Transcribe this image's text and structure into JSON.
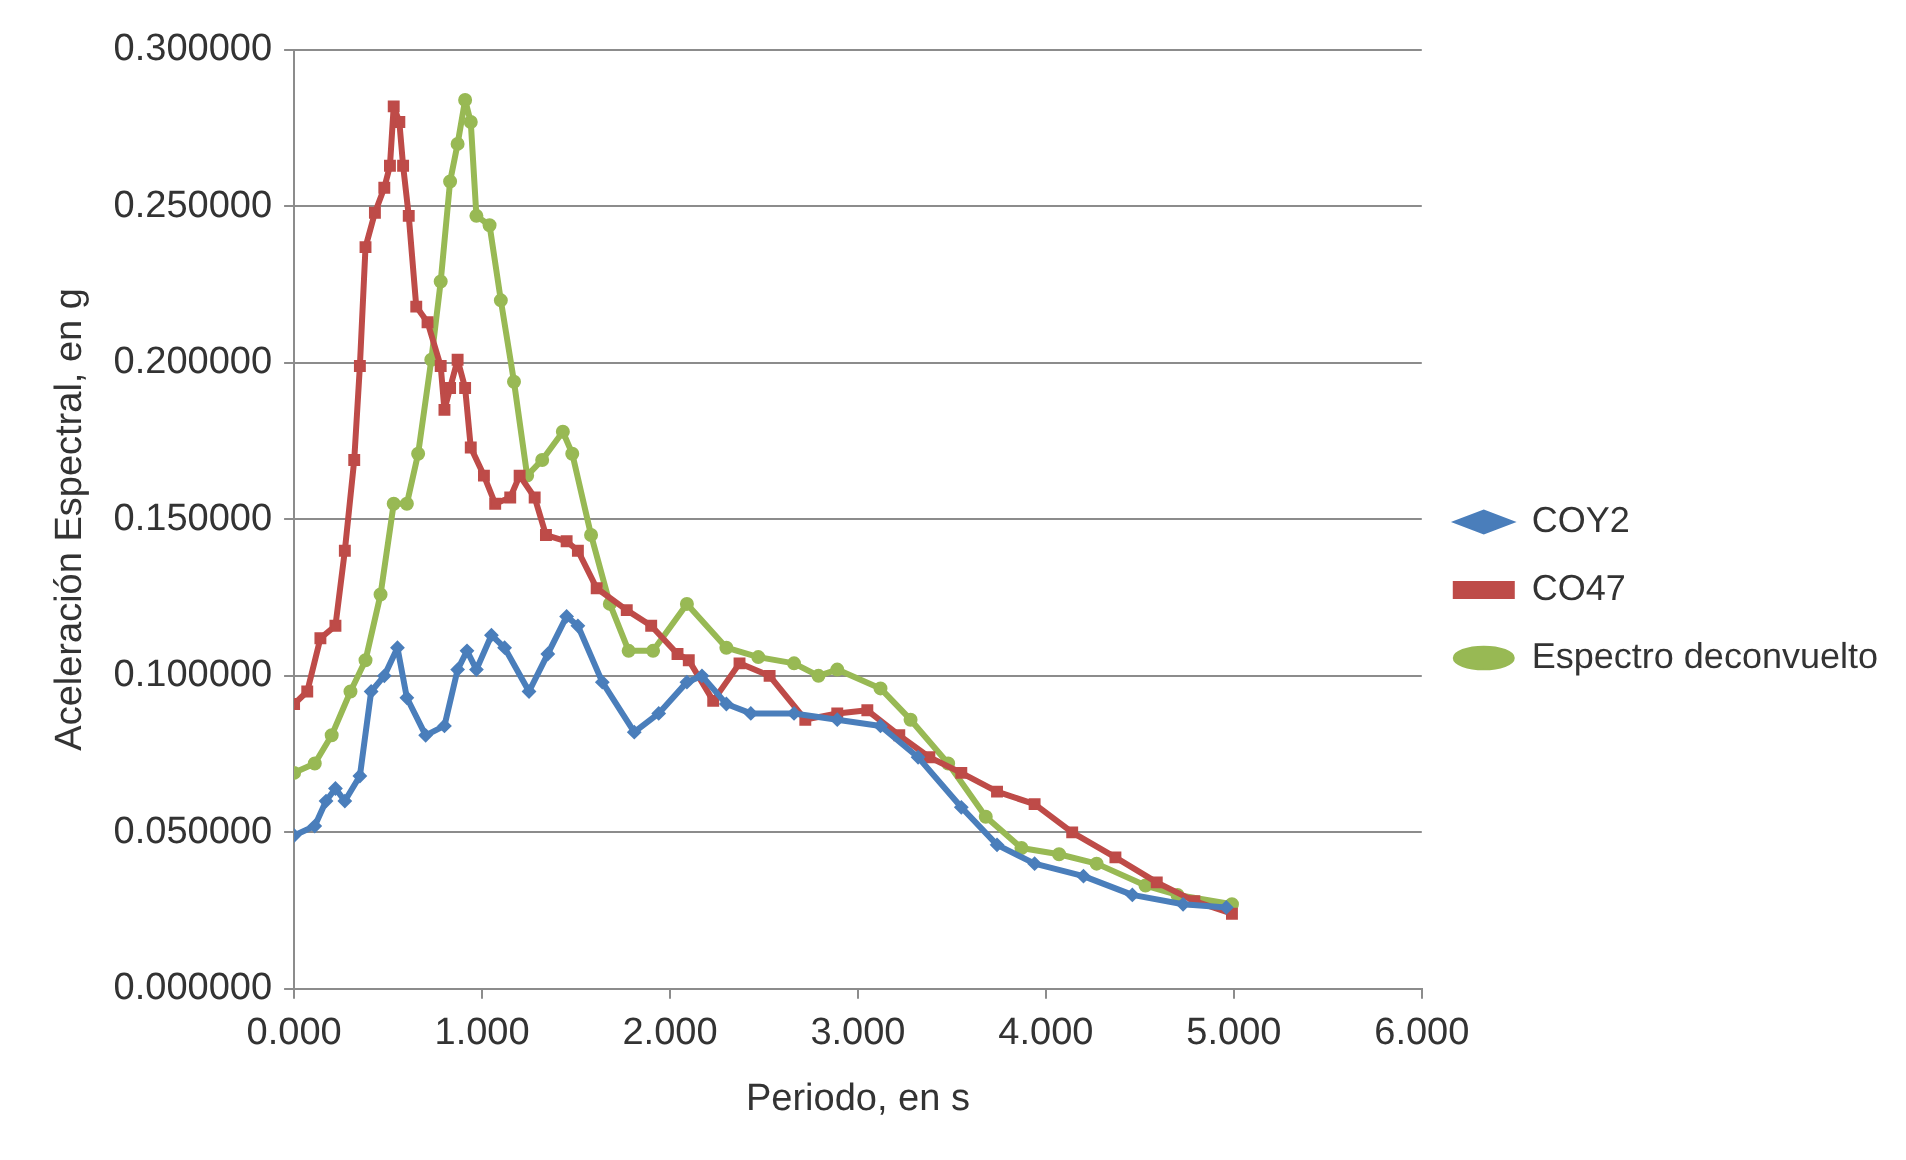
{
  "chart_data": {
    "type": "line",
    "xlabel": "Periodo, en s",
    "ylabel": "Aceleración Espectral, en g",
    "xlim": [
      0,
      6
    ],
    "xticks": [
      {
        "value": 0,
        "label": "0.000"
      },
      {
        "value": 1,
        "label": "1.000"
      },
      {
        "value": 2,
        "label": "2.000"
      },
      {
        "value": 3,
        "label": "3.000"
      },
      {
        "value": 4,
        "label": "4.000"
      },
      {
        "value": 5,
        "label": "5.000"
      },
      {
        "value": 6,
        "label": "6.000"
      }
    ],
    "ylim": [
      0,
      0.3
    ],
    "yticks": [
      {
        "value": 0,
        "label": "0.000000"
      },
      {
        "value": 0.05,
        "label": "0.050000"
      },
      {
        "value": 0.1,
        "label": "0.100000"
      },
      {
        "value": 0.15,
        "label": "0.150000"
      },
      {
        "value": 0.2,
        "label": "0.200000"
      },
      {
        "value": 0.25,
        "label": "0.250000"
      },
      {
        "value": 0.3,
        "label": "0.300000"
      }
    ],
    "grid": "y",
    "legend": "right",
    "series": [
      {
        "name": "COY2",
        "color": "#4a7ebb",
        "marker": "diamond",
        "x": [
          0,
          0.11,
          0.17,
          0.22,
          0.27,
          0.35,
          0.41,
          0.48,
          0.55,
          0.6,
          0.7,
          0.8,
          0.87,
          0.92,
          0.97,
          1.05,
          1.12,
          1.25,
          1.35,
          1.45,
          1.51,
          1.64,
          1.81,
          1.94,
          2.09,
          2.17,
          2.3,
          2.43,
          2.66,
          2.89,
          3.12,
          3.32,
          3.55,
          3.74,
          3.94,
          4.2,
          4.46,
          4.73,
          4.96
        ],
        "values": [
          0.049,
          0.052,
          0.06,
          0.064,
          0.06,
          0.068,
          0.095,
          0.1,
          0.109,
          0.093,
          0.081,
          0.084,
          0.102,
          0.108,
          0.102,
          0.113,
          0.109,
          0.095,
          0.107,
          0.119,
          0.116,
          0.098,
          0.082,
          0.088,
          0.098,
          0.1,
          0.091,
          0.088,
          0.088,
          0.086,
          0.084,
          0.074,
          0.058,
          0.046,
          0.04,
          0.036,
          0.03,
          0.027,
          0.026
        ]
      },
      {
        "name": "CO47",
        "color": "#be4b48",
        "marker": "square",
        "x": [
          0,
          0.07,
          0.14,
          0.22,
          0.27,
          0.32,
          0.35,
          0.38,
          0.43,
          0.48,
          0.51,
          0.53,
          0.56,
          0.58,
          0.61,
          0.65,
          0.71,
          0.78,
          0.8,
          0.83,
          0.87,
          0.91,
          0.94,
          1.01,
          1.07,
          1.15,
          1.2,
          1.28,
          1.34,
          1.45,
          1.51,
          1.61,
          1.77,
          1.9,
          2.04,
          2.1,
          2.23,
          2.37,
          2.53,
          2.72,
          2.89,
          3.05,
          3.22,
          3.38,
          3.55,
          3.74,
          3.94,
          4.14,
          4.37,
          4.59,
          4.79,
          4.99
        ],
        "values": [
          0.091,
          0.095,
          0.112,
          0.116,
          0.14,
          0.169,
          0.199,
          0.237,
          0.248,
          0.256,
          0.263,
          0.282,
          0.277,
          0.263,
          0.247,
          0.218,
          0.213,
          0.199,
          0.185,
          0.192,
          0.201,
          0.192,
          0.173,
          0.164,
          0.155,
          0.157,
          0.164,
          0.157,
          0.145,
          0.143,
          0.14,
          0.128,
          0.121,
          0.116,
          0.107,
          0.105,
          0.092,
          0.104,
          0.1,
          0.086,
          0.088,
          0.089,
          0.081,
          0.074,
          0.069,
          0.063,
          0.059,
          0.05,
          0.042,
          0.034,
          0.028,
          0.024
        ]
      },
      {
        "name": "Espectro deconvuelto",
        "color": "#98b954",
        "marker": "circle",
        "x": [
          0,
          0.11,
          0.2,
          0.3,
          0.38,
          0.46,
          0.53,
          0.6,
          0.66,
          0.73,
          0.78,
          0.83,
          0.87,
          0.91,
          0.94,
          0.97,
          1.04,
          1.1,
          1.17,
          1.24,
          1.32,
          1.43,
          1.48,
          1.58,
          1.68,
          1.78,
          1.91,
          2.09,
          2.3,
          2.47,
          2.66,
          2.79,
          2.89,
          3.12,
          3.28,
          3.48,
          3.68,
          3.87,
          4.07,
          4.27,
          4.53,
          4.7,
          4.99
        ],
        "values": [
          0.069,
          0.072,
          0.081,
          0.095,
          0.105,
          0.126,
          0.155,
          0.155,
          0.171,
          0.201,
          0.226,
          0.258,
          0.27,
          0.284,
          0.277,
          0.247,
          0.244,
          0.22,
          0.194,
          0.164,
          0.169,
          0.178,
          0.171,
          0.145,
          0.123,
          0.108,
          0.108,
          0.123,
          0.109,
          0.106,
          0.104,
          0.1,
          0.102,
          0.096,
          0.086,
          0.072,
          0.055,
          0.045,
          0.043,
          0.04,
          0.033,
          0.03,
          0.027
        ]
      }
    ]
  }
}
